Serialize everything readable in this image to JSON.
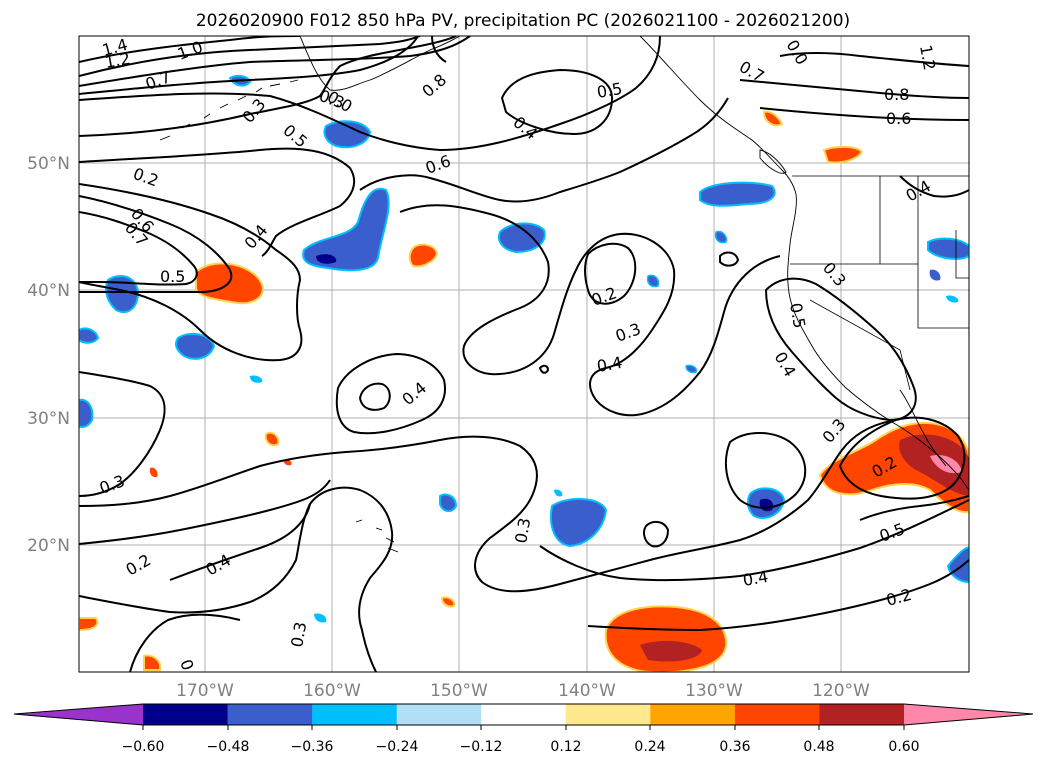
{
  "title": "2026020900 F012 850 hPa PV, precipitation PC (2026021100 - 2026021200)",
  "map": {
    "lat_labels": [
      "50°N",
      "40°N",
      "30°N",
      "20°N"
    ],
    "lon_labels": [
      "170°W",
      "160°W",
      "150°W",
      "140°W",
      "130°W",
      "120°W"
    ],
    "contour_labels": [
      "1.4",
      "1.2",
      "1.0",
      "0.7",
      "0.5",
      "0.3",
      "0.2",
      "0.6",
      "0.7",
      "0.4",
      "0.5",
      "0.3",
      "0.6",
      "0.8",
      "0.5",
      "0.4",
      "0.2",
      "0.3",
      "0.4",
      "0.4",
      "0.3",
      "0.2",
      "0.4",
      "0.3",
      "0.2",
      "0.3",
      "0.7",
      "0.8",
      "0.6",
      "0.4",
      "0.3",
      "0.5",
      "0.4",
      "0.3",
      "0.2",
      "0.5",
      "0.4",
      "0.2",
      "1.2",
      "0.0",
      "0.0"
    ]
  },
  "colorbar": {
    "ticks": [
      "−0.60",
      "−0.48",
      "−0.36",
      "−0.24",
      "−0.12",
      "0.12",
      "0.24",
      "0.36",
      "0.48",
      "0.60"
    ],
    "colors": [
      "#9933cc",
      "#00008b",
      "#3a5fcd",
      "#00bfff",
      "#b0e0f6",
      "#ffffff",
      "#ffe98f",
      "#ffa500",
      "#ff4500",
      "#b22222",
      "#ff88aa"
    ]
  }
}
